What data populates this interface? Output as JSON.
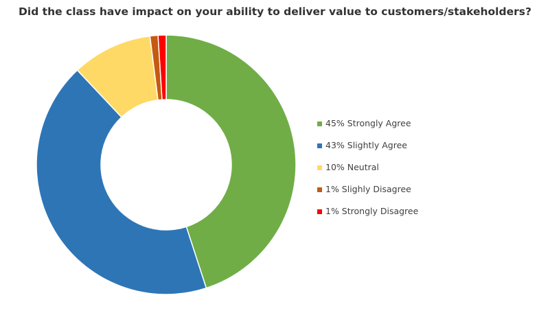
{
  "chart_data": {
    "type": "pie",
    "title": "Did the class have impact on your ability to deliver value to customers/stakeholders?",
    "categories": [
      "Strongly Agree",
      "Slightly Agree",
      "Neutral",
      "Slighly Disagree",
      "Strongly Disagree"
    ],
    "values": [
      45,
      43,
      10,
      1,
      1
    ],
    "unit": "%",
    "colors": [
      "#70AD47",
      "#2E75B6",
      "#FFD966",
      "#C55A11",
      "#FF0000"
    ],
    "legend_labels": [
      "45% Strongly Agree",
      "43% Slightly Agree",
      "10% Neutral",
      "1% Slighly Disagree",
      "1% Strongly Disagree"
    ],
    "legend_position": "right",
    "style": "donut"
  }
}
